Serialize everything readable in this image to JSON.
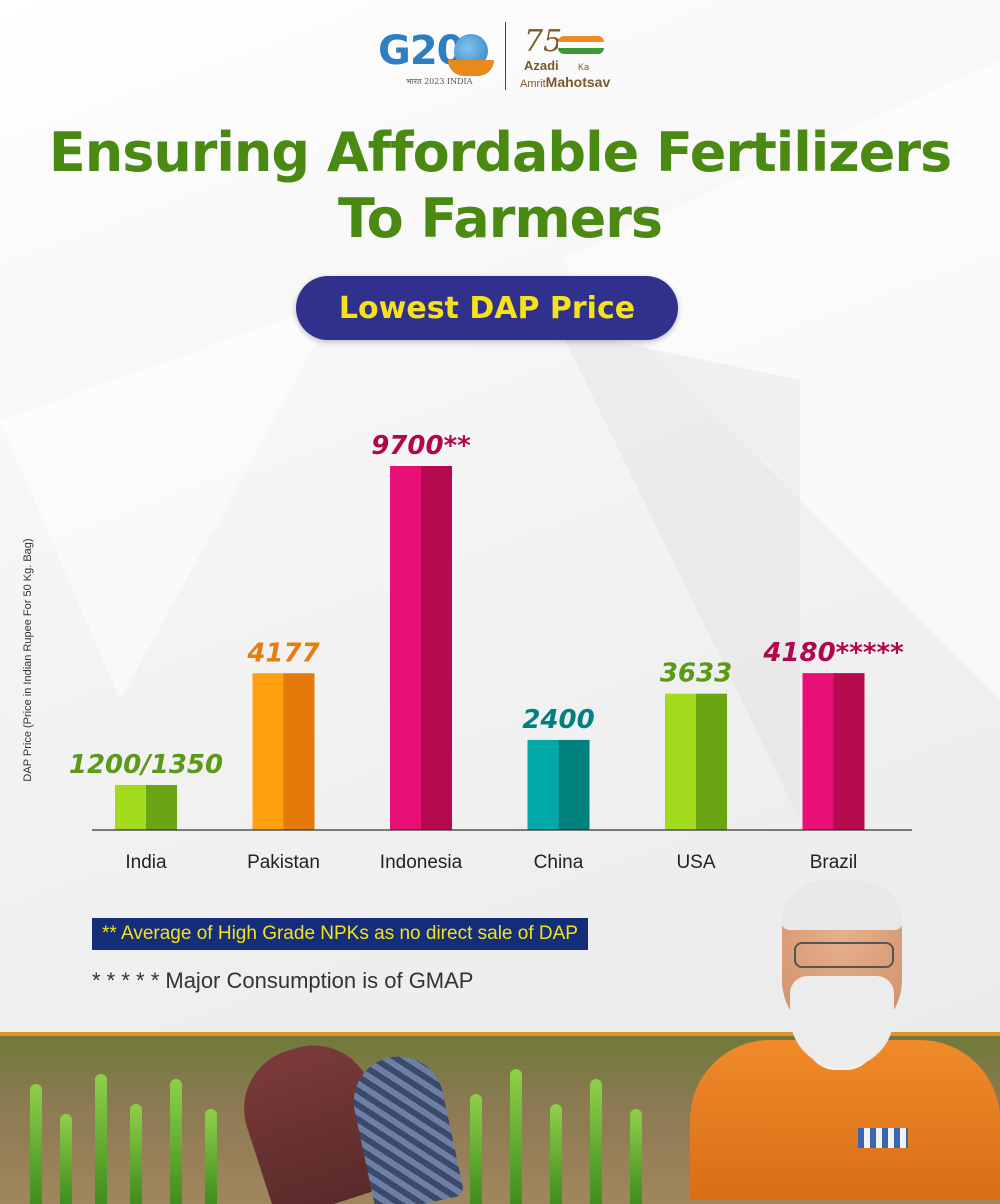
{
  "header": {
    "g20_text": "G20",
    "g20_sub": "भारत 2023 INDIA",
    "akam_number": "75",
    "akam_line1": "Azadi",
    "akam_ka": "Ka",
    "akam_line2a": "Amrit",
    "akam_line2b": "Mahotsav"
  },
  "title_line1": "Ensuring Affordable Fertilizers",
  "title_line2": "To Farmers",
  "subtitle": "Lowest DAP Price",
  "chart_data": {
    "type": "bar",
    "categories": [
      "India",
      "Pakistan",
      "Indonesia",
      "China",
      "USA",
      "Brazil"
    ],
    "values": [
      1200,
      4177,
      9700,
      2400,
      3633,
      4180
    ],
    "labels": [
      "1200/1350",
      "4177",
      "9700**",
      "2400",
      "3633",
      "4180*****"
    ],
    "ylabel": "DAP Price (Price in Indian Rupee For 50 Kg. Bag)",
    "ylim": [
      0,
      9700
    ],
    "grid": false,
    "colors": [
      {
        "light": "#a2dc1c",
        "dark": "#6aa514",
        "label": "#5b9a17"
      },
      {
        "light": "#ffa00f",
        "dark": "#e57a0a",
        "label": "#e47c10"
      },
      {
        "light": "#ea0f76",
        "dark": "#b50a4e",
        "label": "#b2064c"
      },
      {
        "light": "#00a9a8",
        "dark": "#00807e",
        "label": "#00807e"
      },
      {
        "light": "#a2dc1c",
        "dark": "#6aa514",
        "label": "#5b9a17"
      },
      {
        "light": "#ea0f76",
        "dark": "#b50a4e",
        "label": "#b2064c"
      }
    ]
  },
  "footnotes": {
    "note1": "** Average of High Grade NPKs as no direct sale of DAP",
    "note2": "* * * * * Major Consumption is of GMAP"
  }
}
